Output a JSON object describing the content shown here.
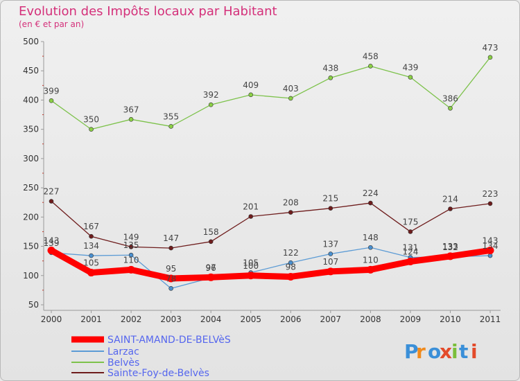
{
  "chart_data": {
    "type": "line",
    "title": "Evolution des Impôts locaux par Habitant",
    "subtitle": "(en € et par an)",
    "x": [
      "2000",
      "2001",
      "2002",
      "2003",
      "2004",
      "2005",
      "2006",
      "2007",
      "2008",
      "2009",
      "2010",
      "2011"
    ],
    "ylim": [
      50,
      500
    ],
    "yticks": [
      50,
      100,
      150,
      200,
      250,
      300,
      350,
      400,
      450,
      500
    ],
    "grid": false,
    "legend_position": "bottom-left",
    "series": [
      {
        "name": "Belvès",
        "color": "#7dc24b",
        "marker": "#8bd045",
        "values": [
          399,
          350,
          367,
          355,
          392,
          409,
          403,
          438,
          458,
          439,
          386,
          473
        ]
      },
      {
        "name": "Sainte-Foy-de-Belvès",
        "color": "#6e1c1c",
        "marker": "#6e1c1c",
        "values": [
          227,
          167,
          149,
          147,
          158,
          201,
          208,
          215,
          224,
          175,
          214,
          223
        ]
      },
      {
        "name": "Larzac",
        "color": "#5b9bd5",
        "marker": "#4a90d0",
        "values": [
          139,
          134,
          135,
          78,
          96,
          105,
          122,
          137,
          148,
          131,
          132,
          134
        ]
      },
      {
        "name": "SAINT-AMAND-DE-BELVèS",
        "color": "#ff0000",
        "marker": "#ff0000",
        "values": [
          143,
          105,
          110,
          95,
          97,
          100,
          98,
          107,
          110,
          124,
          133,
          143
        ]
      }
    ]
  },
  "legend": [
    {
      "label": "SAINT-AMAND-DE-BELVèS",
      "color": "#ff0000"
    },
    {
      "label": "Larzac",
      "color": "#5b9bd5"
    },
    {
      "label": "Belvès",
      "color": "#7dc24b"
    },
    {
      "label": "Sainte-Foy-de-Belvès",
      "color": "#6e1c1c"
    }
  ],
  "brand": {
    "text": "Proxiti"
  }
}
